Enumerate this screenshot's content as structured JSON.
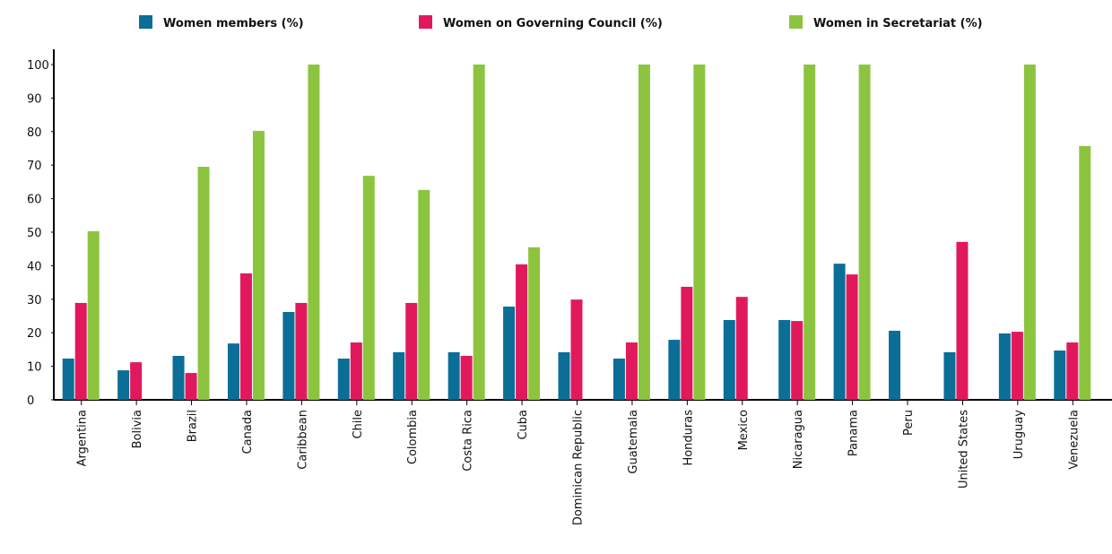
{
  "chart_data": {
    "type": "bar",
    "categories": [
      "Argentina",
      "Bolivia",
      "Brazil",
      "Canada",
      "Caribbean",
      "Chile",
      "Colombia",
      "Costa Rica",
      "Cuba",
      "Dominican Republic",
      "Guatemala",
      "Honduras",
      "Mexico",
      "Nicaragua",
      "Panama",
      "Peru",
      "United States",
      "Uruguay",
      "Venezuela"
    ],
    "series": [
      {
        "name": "Women members (%)",
        "color": "#0b6e97",
        "values": [
          12.3,
          8.8,
          13.1,
          16.8,
          26.2,
          12.3,
          14.2,
          14.2,
          27.8,
          14.2,
          12.3,
          17.9,
          23.8,
          23.8,
          40.6,
          20.6,
          14.2,
          19.8,
          14.7
        ]
      },
      {
        "name": "Women on Governing Council (%)",
        "color": "#e2185d",
        "values": [
          28.9,
          11.2,
          8,
          37.7,
          28.9,
          17.1,
          28.9,
          13.1,
          40.4,
          29.9,
          17.1,
          33.7,
          30.7,
          23.5,
          37.4,
          null,
          47.1,
          20.3,
          17.1
        ]
      },
      {
        "name": "Women in Secretariat (%)",
        "color": "#8cc43f",
        "values": [
          50.3,
          null,
          69.5,
          80.2,
          100,
          66.8,
          62.6,
          100,
          45.5,
          null,
          100,
          100,
          null,
          100,
          100,
          null,
          null,
          100,
          75.7
        ]
      }
    ],
    "ylim": [
      0,
      100
    ],
    "yticks": [
      0,
      10,
      20,
      30,
      40,
      50,
      60,
      70,
      80,
      90,
      100
    ],
    "grid": false
  }
}
